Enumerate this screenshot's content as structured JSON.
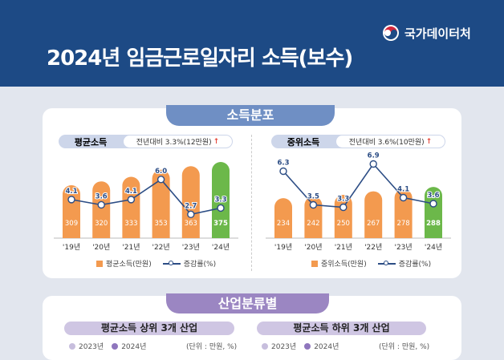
{
  "header": {
    "title": "2024년 임금근로일자리 소득(보수)",
    "logo_text": "국가데이터처"
  },
  "section1": {
    "tab": "소득분포"
  },
  "colors": {
    "header": "#1d4a85",
    "bar": "#f39a4f",
    "bar_highlight": "#6cb84a",
    "line": "#2c4d85",
    "tab1": "#6f8fc4",
    "tab2": "#9b86c2"
  },
  "chart_data": [
    {
      "type": "bar",
      "title": "평균소득",
      "subtitle": "전년대비 3.3%(12만원)",
      "categories": [
        "'19년",
        "'20년",
        "'21년",
        "'22년",
        "'23년",
        "'24년"
      ],
      "series": [
        {
          "name": "평균소득(만원)",
          "type": "bar",
          "values": [
            309,
            320,
            333,
            353,
            363,
            375
          ]
        },
        {
          "name": "증감률(%)",
          "type": "line",
          "values": [
            4.1,
            3.6,
            4.1,
            6.0,
            2.7,
            3.3
          ]
        }
      ]
    },
    {
      "type": "bar",
      "title": "중위소득",
      "subtitle": "전년대비 3.6%(10만원)",
      "categories": [
        "'19년",
        "'20년",
        "'21년",
        "'22년",
        "'23년",
        "'24년"
      ],
      "series": [
        {
          "name": "중위소득(만원)",
          "type": "bar",
          "values": [
            234,
            242,
            250,
            267,
            278,
            288
          ]
        },
        {
          "name": "증감률(%)",
          "type": "line",
          "values": [
            6.3,
            3.5,
            3.3,
            6.9,
            4.1,
            3.6
          ]
        }
      ]
    }
  ],
  "section2": {
    "tab": "산업분류별",
    "left": {
      "title": "평균소득 상위 3개 산업",
      "legend": [
        "2023년",
        "2024년"
      ],
      "unit": "(단위 : 만원, %)"
    },
    "right": {
      "title": "평균소득 하위 3개 산업",
      "legend": [
        "2023년",
        "2024년"
      ],
      "unit": "(단위 : 만원, %)"
    }
  }
}
